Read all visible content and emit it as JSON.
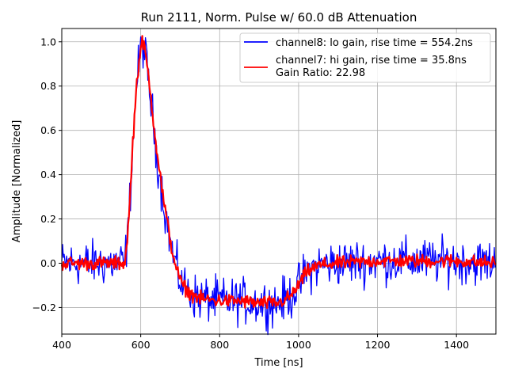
{
  "chart_data": {
    "type": "line",
    "title": "Run 2111, Norm. Pulse w/ 60.0 dB Attenuation",
    "xlabel": "Time [ns]",
    "ylabel": "Amplitude [Normalized]",
    "xlim": [
      400,
      1500
    ],
    "ylim": [
      -0.32,
      1.06
    ],
    "xticks": [
      400,
      600,
      800,
      1000,
      1200,
      1400
    ],
    "xtick_labels": [
      "400",
      "600",
      "800",
      "1000",
      "1200",
      "1400"
    ],
    "yticks": [
      -0.2,
      0.0,
      0.2,
      0.4,
      0.6,
      0.8,
      1.0
    ],
    "ytick_labels": [
      "−0.2",
      "0.0",
      "0.2",
      "0.4",
      "0.6",
      "0.8",
      "1.0"
    ],
    "grid": true,
    "legend_position": "top-right",
    "series": [
      {
        "name": "channel8: lo gain, rise time = 554.2ns",
        "color": "#0000ff",
        "noise_amplitude": 0.05,
        "x": [
          400,
          560,
          570,
          580,
          590,
          600,
          605,
          610,
          620,
          640,
          660,
          680,
          700,
          720,
          750,
          800,
          850,
          900,
          950,
          980,
          1000,
          1020,
          1050,
          1100,
          1200,
          1300,
          1400,
          1500
        ],
        "y": [
          0.0,
          0.0,
          0.2,
          0.55,
          0.82,
          0.96,
          0.99,
          0.96,
          0.82,
          0.5,
          0.25,
          0.05,
          -0.08,
          -0.13,
          -0.16,
          -0.17,
          -0.17,
          -0.18,
          -0.18,
          -0.15,
          -0.1,
          -0.04,
          -0.01,
          0.0,
          0.01,
          0.01,
          0.01,
          0.0
        ]
      },
      {
        "name": "channel7: hi gain, rise time = 35.8ns",
        "color": "#ff0000",
        "noise_amplitude": 0.015,
        "x": [
          400,
          560,
          570,
          580,
          590,
          600,
          605,
          610,
          620,
          640,
          660,
          680,
          700,
          720,
          750,
          800,
          850,
          900,
          950,
          980,
          1000,
          1020,
          1050,
          1100,
          1200,
          1300,
          1400,
          1500
        ],
        "y": [
          0.0,
          0.0,
          0.2,
          0.55,
          0.82,
          0.97,
          1.0,
          0.97,
          0.84,
          0.52,
          0.26,
          0.05,
          -0.08,
          -0.13,
          -0.16,
          -0.17,
          -0.17,
          -0.18,
          -0.18,
          -0.15,
          -0.1,
          -0.04,
          -0.01,
          0.0,
          0.01,
          0.01,
          0.01,
          0.0
        ]
      }
    ],
    "legend_extra": "Gain Ratio: 22.98"
  },
  "colors": {
    "grid": "#b0b0b0",
    "axis": "#000000",
    "legend_border": "#cccccc"
  }
}
